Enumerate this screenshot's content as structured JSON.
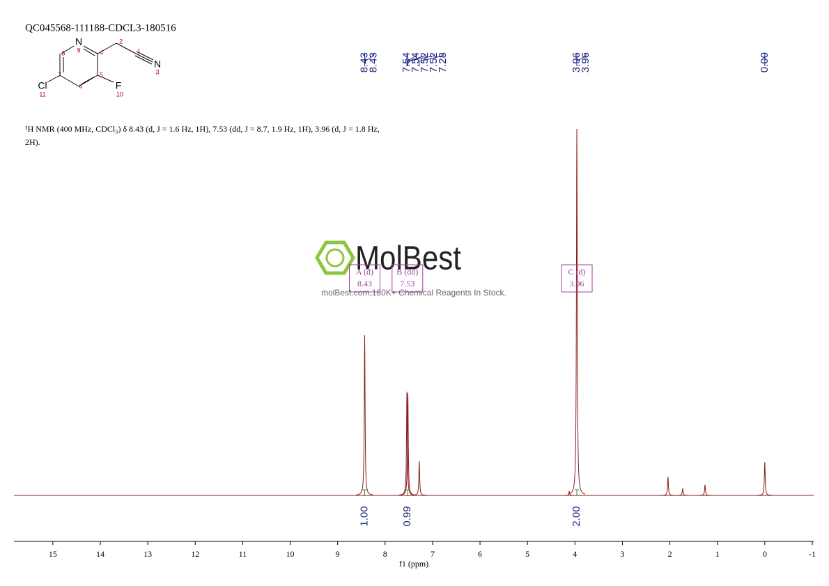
{
  "structure": {
    "atoms": [
      "N",
      "N",
      "Cl",
      "F"
    ],
    "numbers": [
      "1",
      "2",
      "3",
      "4",
      "5",
      "6",
      "7",
      "8",
      "9",
      "10",
      "11"
    ]
  },
  "chart_data": {
    "type": "spectrum",
    "title": "QC045568-111188-CDCL3-180516",
    "annotation": [
      "¹H NMR (400 MHz, CDCl₃) δ 8.43 (d, J = 1.6 Hz, 1H), 7.53 (dd, J = 8.7, 1.9 Hz, 1H), 3.96 (d, J = 1.8 Hz,",
      "2H)."
    ],
    "watermark": [
      "MolBest",
      "molBest.com,180K+ Chemical Reagents In Stock."
    ],
    "x_label": "f1 (ppm)",
    "color": "#8b1a1a",
    "x": [
      8.43,
      7.54,
      7.52,
      7.28,
      4.12,
      3.96,
      2.04,
      1.73,
      1.26,
      0.0
    ],
    "values": [
      43.7,
      28.3,
      27.9,
      9.3,
      1.1,
      100,
      5.1,
      1.9,
      2.9,
      9.1
    ],
    "xlim": [
      15.82,
      -1.03
    ],
    "ylim": [
      0,
      100
    ],
    "xticks": [
      15,
      14,
      13,
      12,
      11,
      10,
      9,
      8,
      7,
      6,
      5,
      4,
      3,
      2,
      1,
      0,
      -1
    ],
    "peak_labels": {
      "x": [
        8.43,
        8.43,
        7.54,
        7.54,
        7.52,
        7.52,
        7.28,
        3.96,
        3.96,
        0.0
      ],
      "labels": [
        "8.43",
        "8.43",
        "7.54",
        "7.54",
        "7.52",
        "7.52",
        "7.28",
        "3.96",
        "3.96",
        "0.00"
      ]
    },
    "integrals": {
      "x": [
        8.43,
        7.53,
        3.96
      ],
      "values": [
        1,
        0.99,
        2
      ],
      "value_labels": [
        "1.00",
        "0.99",
        "2.00"
      ]
    },
    "multiplets": [
      {
        "x": 8.43,
        "label": "A (d)",
        "shift": "8.43"
      },
      {
        "x": 7.53,
        "label": "B (dd)",
        "shift": "7.53"
      },
      {
        "x": 3.96,
        "label": "C (d)",
        "shift": "3.96"
      }
    ]
  }
}
